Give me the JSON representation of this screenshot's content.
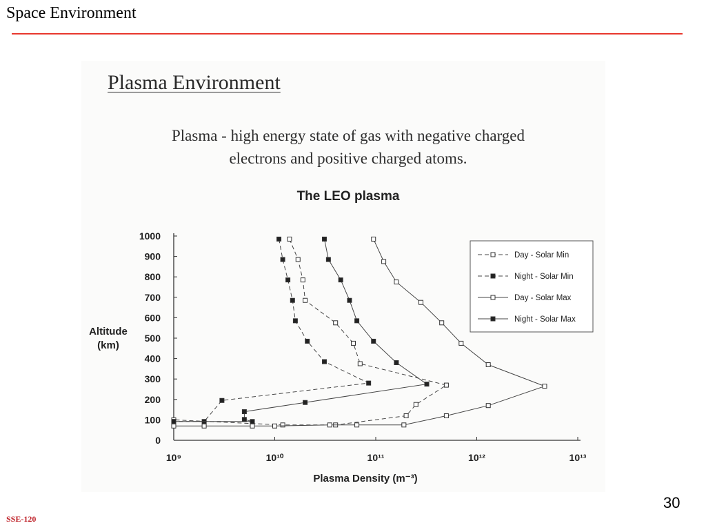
{
  "header": {
    "title": "Space Environment"
  },
  "slide": {
    "heading": "Plasma Environment",
    "definition_line1": "Plasma - high energy state of gas with negative charged",
    "definition_line2": "electrons and positive charged atoms."
  },
  "footer": {
    "code": "SSE-120",
    "page": "30"
  },
  "colors": {
    "rule": "#e8372d",
    "footer": "#c0262d",
    "ink": "#2a2a2a"
  },
  "chart_data": {
    "type": "line",
    "title": "The LEO plasma",
    "xlabel": "Plasma Density (m⁻³)",
    "ylabel_line1": "Altitude",
    "ylabel_line2": "(km)",
    "x_scale": "log",
    "xlim": [
      1000000000.0,
      10000000000000.0
    ],
    "ylim": [
      0,
      1000
    ],
    "x_tick_labels": [
      "10⁹",
      "10¹⁰",
      "10¹¹",
      "10¹²",
      "10¹³"
    ],
    "y_tick_labels": [
      "1000",
      "900",
      "800",
      "700",
      "600",
      "500",
      "400",
      "300",
      "200",
      "100",
      "0"
    ],
    "grid": false,
    "legend_position": "top-right",
    "series": [
      {
        "name": "Day - Solar Min",
        "line": "dashed",
        "marker": "open-square",
        "points": [
          [
            14000000000.0,
            985
          ],
          [
            17000000000.0,
            885
          ],
          [
            19000000000.0,
            785
          ],
          [
            20000000000.0,
            685
          ],
          [
            40000000000.0,
            575
          ],
          [
            60000000000.0,
            475
          ],
          [
            70000000000.0,
            375
          ],
          [
            500000000000.0,
            270
          ],
          [
            250000000000.0,
            175
          ],
          [
            200000000000.0,
            120
          ],
          [
            40000000000.0,
            75
          ],
          [
            12000000000.0,
            75
          ],
          [
            1000000000.0,
            100
          ]
        ]
      },
      {
        "name": "Night - Solar Min",
        "line": "dashed",
        "marker": "filled-square",
        "points": [
          [
            11000000000.0,
            985
          ],
          [
            12000000000.0,
            885
          ],
          [
            13500000000.0,
            785
          ],
          [
            15000000000.0,
            685
          ],
          [
            16000000000.0,
            585
          ],
          [
            21000000000.0,
            485
          ],
          [
            31000000000.0,
            385
          ],
          [
            85000000000.0,
            280
          ],
          [
            3000000000.0,
            195
          ],
          [
            2000000000.0,
            92
          ],
          [
            1000000000.0,
            92
          ]
        ]
      },
      {
        "name": "Day - Solar Max",
        "line": "solid",
        "marker": "open-square",
        "points": [
          [
            95000000000.0,
            985
          ],
          [
            120000000000.0,
            875
          ],
          [
            160000000000.0,
            775
          ],
          [
            280000000000.0,
            675
          ],
          [
            450000000000.0,
            575
          ],
          [
            700000000000.0,
            475
          ],
          [
            1300000000000.0,
            370
          ],
          [
            4700000000000.0,
            265
          ],
          [
            1300000000000.0,
            170
          ],
          [
            500000000000.0,
            120
          ],
          [
            190000000000.0,
            75
          ],
          [
            65000000000.0,
            75
          ],
          [
            35000000000.0,
            75
          ],
          [
            10000000000.0,
            70
          ],
          [
            6000000000.0,
            70
          ],
          [
            2000000000.0,
            70
          ],
          [
            1000000000.0,
            70
          ]
        ]
      },
      {
        "name": "Night - Solar Max",
        "line": "solid",
        "marker": "filled-square",
        "points": [
          [
            31000000000.0,
            985
          ],
          [
            34000000000.0,
            885
          ],
          [
            45000000000.0,
            785
          ],
          [
            55000000000.0,
            685
          ],
          [
            65000000000.0,
            585
          ],
          [
            95000000000.0,
            485
          ],
          [
            160000000000.0,
            380
          ],
          [
            320000000000.0,
            275
          ],
          [
            20000000000.0,
            185
          ],
          [
            5000000000.0,
            140
          ],
          [
            5000000000.0,
            102
          ],
          [
            6000000000.0,
            92
          ],
          [
            1000000000.0,
            92
          ]
        ]
      }
    ]
  }
}
